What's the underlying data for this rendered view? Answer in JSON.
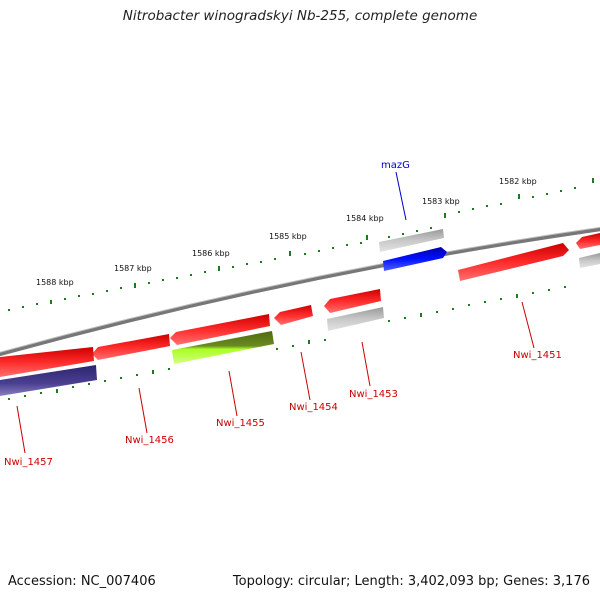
{
  "title": "Nitrobacter winogradskyi Nb-255, complete genome",
  "footer": {
    "accession": "Accession: NC_007406",
    "summary": "Topology: circular; Length: 3,402,093 bp; Genes: 3,176"
  },
  "colors": {
    "backbone": "#888888",
    "tick": "#1e7a1e",
    "gene_red": "#ff0000",
    "gene_gray": "#bbbbbb",
    "gene_blue": "#0000ff",
    "gene_navy": "#4a4090",
    "gene_green": "#9cff1a",
    "label_red": "#cc0000",
    "label_blue": "#0000cc"
  },
  "ruler_labels": [
    "1588 kbp",
    "1587 kbp",
    "1586 kbp",
    "1585 kbp",
    "1584 kbp",
    "1583 kbp",
    "1582 kbp"
  ],
  "gene_labels": [
    "mazG",
    "Nwi_1451",
    "Nwi_1453",
    "Nwi_1454",
    "Nwi_1455",
    "Nwi_1456",
    "Nwi_1457"
  ]
}
